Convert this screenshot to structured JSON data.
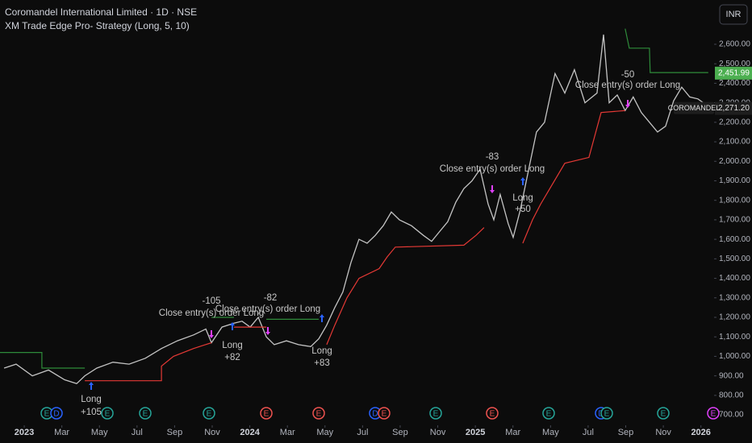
{
  "header": {
    "title": "Coromandel International Limited · 1D · NSE",
    "indicator": "XM Trade Edge Pro- Strategy (Long, 5, 10)",
    "currency": "INR"
  },
  "chart_data": {
    "type": "line",
    "xlim": [
      -1.29,
      36.7
    ],
    "ylim": [
      659,
      2827
    ],
    "xticks": [
      {
        "value": 0,
        "label": "2023"
      },
      {
        "value": 2,
        "label": "Mar"
      },
      {
        "value": 4,
        "label": "May"
      },
      {
        "value": 6,
        "label": "Jul"
      },
      {
        "value": 8,
        "label": "Sep"
      },
      {
        "value": 10,
        "label": "Nov"
      },
      {
        "value": 12,
        "label": "2024"
      },
      {
        "value": 14,
        "label": "Mar"
      },
      {
        "value": 16,
        "label": "May"
      },
      {
        "value": 18,
        "label": "Jul"
      },
      {
        "value": 20,
        "label": "Sep"
      },
      {
        "value": 22,
        "label": "Nov"
      },
      {
        "value": 24,
        "label": "2025"
      },
      {
        "value": 26,
        "label": "Mar"
      },
      {
        "value": 28,
        "label": "May"
      },
      {
        "value": 30,
        "label": "Jul"
      },
      {
        "value": 32,
        "label": "Sep"
      },
      {
        "value": 34,
        "label": "Nov"
      },
      {
        "value": 36,
        "label": "2026"
      }
    ],
    "yticks": [
      {
        "value": 700,
        "label": "700.00"
      },
      {
        "value": 800,
        "label": "800.00"
      },
      {
        "value": 900,
        "label": "900.00"
      },
      {
        "value": 1000,
        "label": "1,000.00"
      },
      {
        "value": 1100,
        "label": "1,100.00"
      },
      {
        "value": 1200,
        "label": "1,200.00"
      },
      {
        "value": 1300,
        "label": "1,300.00"
      },
      {
        "value": 1400,
        "label": "1,400.00"
      },
      {
        "value": 1500,
        "label": "1,500.00"
      },
      {
        "value": 1600,
        "label": "1,600.00"
      },
      {
        "value": 1700,
        "label": "1,700.00"
      },
      {
        "value": 1800,
        "label": "1,800.00"
      },
      {
        "value": 1900,
        "label": "1,900.00"
      },
      {
        "value": 2000,
        "label": "2,000.00"
      },
      {
        "value": 2100,
        "label": "2,100.00"
      },
      {
        "value": 2200,
        "label": "2,200.00"
      },
      {
        "value": 2300,
        "label": "2,300.00"
      },
      {
        "value": 2400,
        "label": "2,400.00"
      },
      {
        "value": 2500,
        "label": "2,500.00"
      },
      {
        "value": 2600,
        "label": "2,600.00"
      }
    ],
    "series": [
      {
        "color": "#c4c4c4",
        "x": [
          -1.07,
          -0.43,
          0.43,
          1.29,
          2.15,
          2.79,
          3.22,
          3.86,
          4.72,
          5.58,
          6.44,
          7.3,
          8.15,
          9.01,
          9.66,
          9.96,
          10.52,
          11.16,
          11.59,
          12.02,
          12.45,
          12.88,
          13.3,
          13.95,
          14.59,
          15.24,
          15.67,
          16.09,
          16.52,
          16.95,
          17.38,
          17.81,
          18.24,
          18.67,
          19.1,
          19.53,
          19.96,
          20.6,
          21.24,
          21.67,
          22.1,
          22.53,
          22.96,
          23.39,
          23.82,
          24.25,
          24.68,
          24.98,
          25.32,
          25.75,
          26.01,
          26.39,
          26.82,
          27.25,
          27.68,
          28.24,
          28.76,
          29.27,
          29.83,
          30.47,
          30.82,
          31.12,
          31.55,
          31.97,
          32.4,
          32.83,
          33.26,
          33.69,
          34.12,
          34.55,
          34.98,
          35.41,
          35.84,
          36.27
        ],
        "values": [
          940,
          960,
          900,
          930,
          880,
          860,
          900,
          940,
          970,
          960,
          990,
          1040,
          1080,
          1110,
          1140,
          1070,
          1150,
          1170,
          1180,
          1150,
          1200,
          1100,
          1060,
          1080,
          1060,
          1050,
          1090,
          1160,
          1250,
          1330,
          1480,
          1600,
          1580,
          1620,
          1670,
          1740,
          1700,
          1670,
          1620,
          1590,
          1640,
          1690,
          1790,
          1860,
          1900,
          1960,
          1780,
          1700,
          1830,
          1680,
          1610,
          1750,
          1950,
          2150,
          2200,
          2450,
          2350,
          2470,
          2300,
          2350,
          2650,
          2300,
          2340,
          2260,
          2330,
          2250,
          2200,
          2150,
          2180,
          2310,
          2380,
          2330,
          2320,
          2290
        ]
      },
      {
        "color": "#2e8b3a",
        "x": [
          -1.29,
          0.94,
          0.94,
          3.22,
          3.5,
          9.96,
          11.16,
          11.59,
          12.88,
          15.67,
          16,
          31.97,
          32.19,
          33.26,
          33.3,
          36.39
        ],
        "values": [
          1020,
          1020,
          940,
          940,
          null,
          1200,
          1200,
          null,
          1190,
          1190,
          null,
          2680,
          2580,
          2580,
          2455,
          2455
        ]
      },
      {
        "color": "#e53935",
        "x": [
          3.22,
          7.3,
          7.3,
          7.94,
          9.01,
          9.96,
          10.2,
          11.16,
          12.88,
          13.5,
          16.09,
          16.52,
          17.17,
          17.81,
          18.88,
          19.31,
          19.74,
          23.39,
          24.03,
          24.46,
          25,
          26.52,
          27.04,
          27.47,
          27.9,
          28.76,
          30.04,
          30.69,
          31.97
        ],
        "values": [
          875,
          875,
          950,
          1000,
          1040,
          1070,
          null,
          1150,
          1150,
          null,
          1060,
          1160,
          1300,
          1400,
          1450,
          1510,
          1560,
          1570,
          1620,
          1660,
          null,
          1580,
          1700,
          1780,
          1850,
          1990,
          2020,
          2250,
          2260
        ]
      }
    ],
    "stop_price": {
      "value": 2451.99,
      "label": "2,451.99",
      "color": "#4caf50"
    },
    "last_price": {
      "value": 2271.2,
      "label": "2,271.20"
    },
    "symbol": "COROMANDEL",
    "annotations": [
      "Long",
      "+105",
      "Close entry(s) order Long",
      "-105",
      "Long",
      "+82",
      "Close entry(s) order Long",
      "-82",
      "Long",
      "+83",
      "Close entry(s) order Long",
      "-83",
      "Long",
      "+50",
      "Close entry(s) order Long",
      "-50"
    ],
    "events": [
      {
        "label": "E",
        "color": "#26a69a"
      },
      {
        "label": "D",
        "color": "#2962ff"
      },
      {
        "label": "E",
        "color": "#26a69a"
      },
      {
        "label": "E",
        "color": "#26a69a"
      },
      {
        "label": "E",
        "color": "#26a69a"
      },
      {
        "label": "E",
        "color": "#ef5350"
      },
      {
        "label": "E",
        "color": "#ef5350"
      },
      {
        "label": "D",
        "color": "#2962ff"
      },
      {
        "label": "E",
        "color": "#ef5350"
      },
      {
        "label": "E",
        "color": "#26a69a"
      },
      {
        "label": "E",
        "color": "#ef5350"
      },
      {
        "label": "E",
        "color": "#26a69a"
      },
      {
        "label": "D",
        "color": "#2962ff"
      },
      {
        "label": "E",
        "color": "#26a69a"
      },
      {
        "label": "E",
        "color": "#26a69a"
      },
      {
        "label": "E",
        "color": "#e040fb"
      }
    ]
  }
}
